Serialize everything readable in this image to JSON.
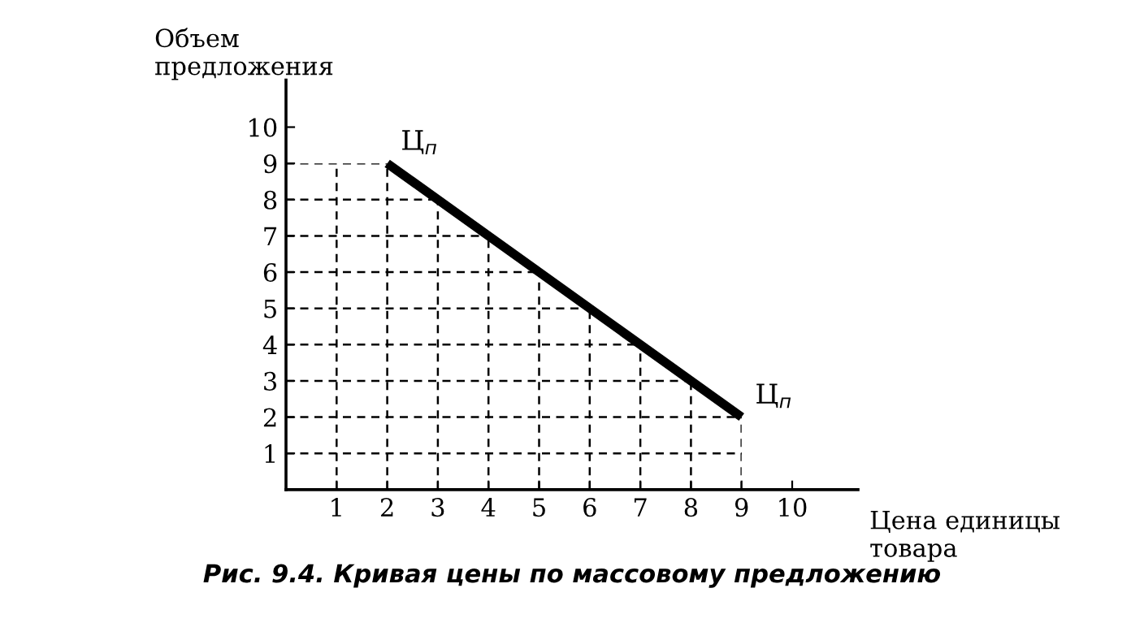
{
  "chart_data": {
    "type": "line",
    "x": [
      2,
      9
    ],
    "values": [
      9,
      2
    ],
    "color": "#000000",
    "xlim": [
      0,
      11.3
    ],
    "ylim": [
      0,
      11.3
    ],
    "xticks": [
      1,
      2,
      3,
      4,
      5,
      6,
      7,
      8,
      9,
      10
    ],
    "yticks": [
      1,
      2,
      3,
      4,
      5,
      6,
      7,
      8,
      9,
      10
    ],
    "xlabel": "Цена единицы\nтовара",
    "ylabel": "Объем\nпредложения",
    "grid": true,
    "line_style": "solid",
    "marker": "none",
    "annotations": [
      {
        "text": "Ц$_{п}$",
        "x": 2,
        "y": 9
      },
      {
        "text": "Ц$_{п}$",
        "x": 9,
        "y": 2
      },
      "Рис. 9.4. Кривая цены по массовому предложению"
    ]
  }
}
